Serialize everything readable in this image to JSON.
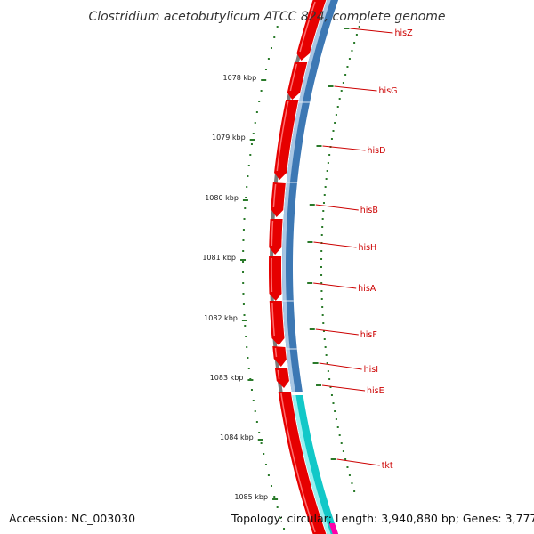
{
  "title": "Clostridium acetobutylicum ATCC 824, complete genome",
  "accession": "Accession: NC_003030",
  "topology": "Topology: circular; Length: 3,940,880 bp; Genes: 3,777",
  "kbp_labels": [
    "1078 kbp",
    "1079 kbp",
    "1080 kbp",
    "1081 kbp",
    "1082 kbp",
    "1083 kbp",
    "1084 kbp",
    "1085 kbp"
  ],
  "genes": [
    "hisZ",
    "hisG",
    "hisD",
    "hisB",
    "hisH",
    "hisA",
    "hisF",
    "hisI",
    "hisE",
    "tkt"
  ],
  "colors": {
    "backbone": "#7a7a7a",
    "cds_forward": "#e60000",
    "cds_band": "#3d78b4",
    "tkt_band": "#12c8c8",
    "gc_ticks": "#2a7a2a",
    "label_line": "#cc0000"
  }
}
